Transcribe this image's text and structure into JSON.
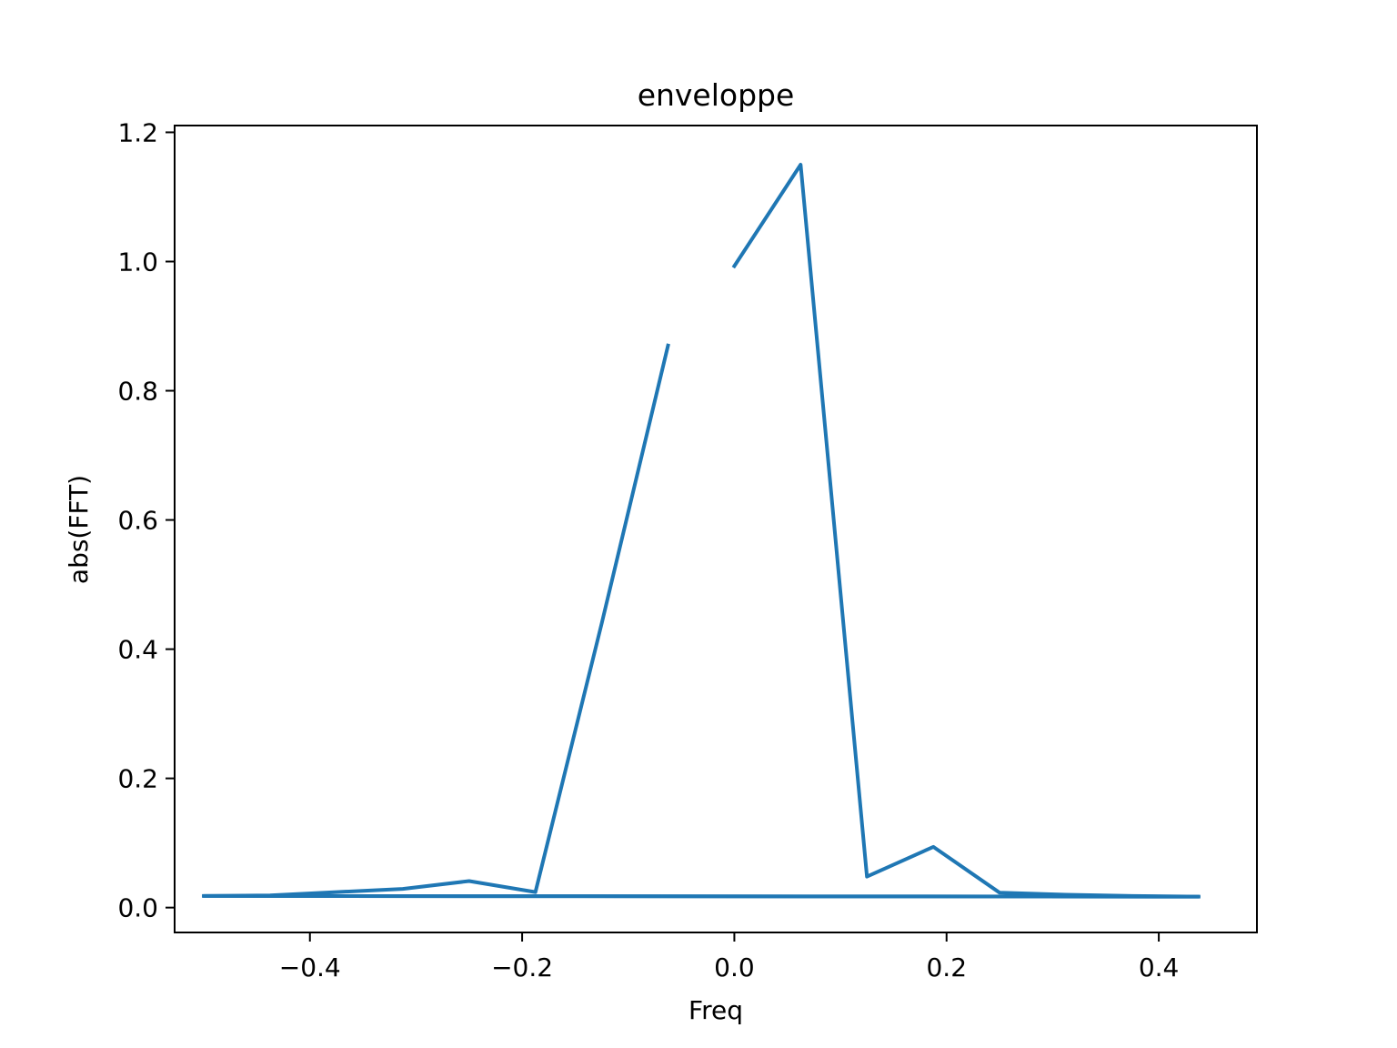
{
  "chart_data": {
    "type": "line",
    "title": "enveloppe",
    "xlabel": "Freq",
    "ylabel": "abs(FFT)",
    "xlim": [
      -0.5275,
      0.4925
    ],
    "ylim": [
      -0.0385,
      1.2105
    ],
    "xticks": [
      -0.4,
      -0.2,
      0.0,
      0.2,
      0.4
    ],
    "xtick_labels": [
      "−0.4",
      "−0.2",
      "0.0",
      "0.2",
      "0.4"
    ],
    "yticks": [
      0.0,
      0.2,
      0.4,
      0.6,
      0.8,
      1.0,
      1.2
    ],
    "ytick_labels": [
      "0.0",
      "0.2",
      "0.4",
      "0.6",
      "0.8",
      "1.0",
      "1.2"
    ],
    "grid": false,
    "series": [
      {
        "color": "#1f77b4",
        "x": [
          0.0,
          0.0625,
          0.125,
          0.1875,
          0.25,
          0.3125,
          0.375,
          0.4375,
          -0.5,
          -0.4375,
          -0.375,
          -0.3125,
          -0.25,
          -0.1875,
          -0.125,
          -0.0625
        ],
        "y": [
          0.993,
          1.15,
          0.048,
          0.094,
          0.023,
          0.02,
          0.018,
          0.017,
          0.018,
          0.019,
          0.024,
          0.029,
          0.041,
          0.024,
          0.44,
          0.87
        ]
      },
      {
        "color": "#1f77b4",
        "x": [
          -0.5,
          0.4375
        ],
        "y": [
          0.018,
          0.017
        ]
      }
    ]
  }
}
